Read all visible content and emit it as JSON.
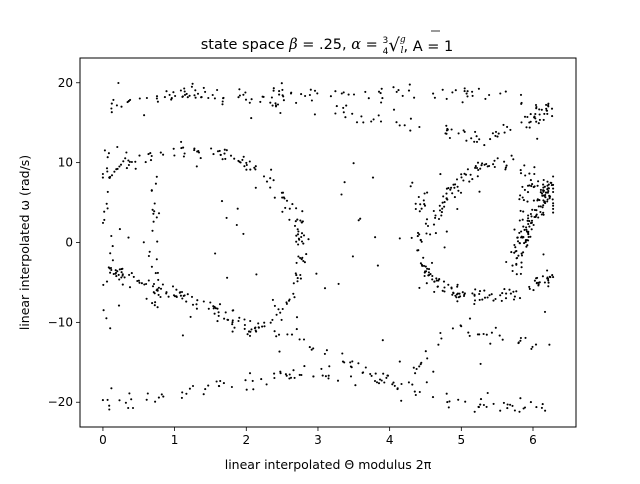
{
  "chart_data": {
    "type": "scatter",
    "title": {
      "prefix": "state space ",
      "beta_sym": "β",
      "beta_val": " = .25, ",
      "alpha_sym": "α",
      "frac_num": "3",
      "frac_den": "4",
      "sqrt_num": "g",
      "sqrt_den": "l",
      "a_text": ", A = 1"
    },
    "xlabel": "linear interpolated Θ modulus 2π",
    "ylabel": "linear interpolated ω (rad/s)",
    "xlim": [
      -0.32,
      6.6
    ],
    "ylim": [
      -23.1,
      23.1
    ],
    "xticks": [
      0,
      1,
      2,
      3,
      4,
      5,
      6
    ],
    "yticks": [
      -20,
      -10,
      0,
      10,
      20
    ],
    "grid": false,
    "legend": "none",
    "marker_color": "#000000",
    "point_count": 1100,
    "trajectories": [
      {
        "kind": "upper-band",
        "x": [
          0.0,
          0.2,
          0.5,
          0.8,
          1.2,
          1.6,
          2.0,
          2.6,
          3.2,
          3.8,
          4.4,
          5.0,
          5.6,
          6.0,
          6.28
        ],
        "y": [
          17.0,
          17.6,
          18.0,
          18.3,
          18.5,
          18.6,
          18.6,
          18.7,
          18.8,
          18.9,
          18.9,
          18.7,
          18.2,
          17.3,
          16.8
        ]
      },
      {
        "kind": "upper-descent",
        "x": [
          1.0,
          1.5,
          2.0,
          2.5,
          3.0,
          3.5,
          4.0,
          4.5,
          5.0,
          5.3,
          5.6,
          5.9,
          6.1,
          6.28
        ],
        "y": [
          19.0,
          18.6,
          18.0,
          17.4,
          16.6,
          15.8,
          15.0,
          14.4,
          13.4,
          12.6,
          14.0,
          15.0,
          15.8,
          16.3
        ]
      },
      {
        "kind": "lower-band",
        "x": [
          0.0,
          0.4,
          0.8,
          1.2,
          1.6,
          2.0,
          2.5,
          3.0,
          3.5,
          4.0,
          4.5,
          5.0,
          5.4,
          5.8,
          6.2
        ],
        "y": [
          -20.3,
          -19.8,
          -19.2,
          -18.6,
          -17.8,
          -17.2,
          -16.8,
          -16.4,
          -16.6,
          -17.4,
          -18.8,
          -20.0,
          -20.6,
          -20.5,
          -20.3
        ]
      },
      {
        "kind": "lower-ascent",
        "x": [
          0.0,
          0.4,
          0.8,
          1.2,
          1.6,
          2.0,
          2.3,
          2.6,
          3.0,
          3.4,
          3.8,
          4.2,
          4.6,
          5.0,
          5.4,
          5.8,
          6.2
        ],
        "y": [
          -3.0,
          -4.2,
          -5.5,
          -7.0,
          -8.5,
          -10.0,
          -11.0,
          -12.0,
          -13.4,
          -15.0,
          -16.6,
          -17.4,
          -13.5,
          -10.5,
          -12.0,
          -12.5,
          -13.0
        ]
      },
      {
        "kind": "left-loop-top",
        "x": [
          0.05,
          0.3,
          0.6,
          0.9,
          1.2,
          1.5,
          1.8,
          2.1,
          2.4,
          2.6,
          2.72,
          2.78
        ],
        "y": [
          8.0,
          9.5,
          10.6,
          11.2,
          11.5,
          11.3,
          10.6,
          9.2,
          7.0,
          4.5,
          2.0,
          0.0
        ]
      },
      {
        "kind": "left-loop-bottom",
        "x": [
          2.78,
          2.72,
          2.6,
          2.4,
          2.1,
          1.8,
          1.5,
          1.2,
          0.9,
          0.6,
          0.3,
          0.05
        ],
        "y": [
          -1.0,
          -4.0,
          -7.0,
          -9.5,
          -11.0,
          -9.8,
          -8.0,
          -6.8,
          -5.8,
          -5.0,
          -4.2,
          -3.5
        ]
      },
      {
        "kind": "right-loop-top",
        "x": [
          4.45,
          4.6,
          4.8,
          5.0,
          5.3,
          5.6,
          5.9,
          6.1,
          6.28
        ],
        "y": [
          0.0,
          2.8,
          5.6,
          8.0,
          9.6,
          9.8,
          8.4,
          6.5,
          4.2
        ]
      },
      {
        "kind": "right-loop-bottom",
        "x": [
          4.45,
          4.6,
          4.8,
          5.0,
          5.3,
          5.6,
          5.9,
          6.1,
          6.28
        ],
        "y": [
          -2.5,
          -4.6,
          -6.0,
          -6.6,
          -6.8,
          -6.7,
          -6.2,
          -5.0,
          -4.0
        ]
      },
      {
        "kind": "right-inner",
        "x": [
          5.75,
          5.85,
          6.0,
          6.15,
          6.28
        ],
        "y": [
          -2.0,
          0.0,
          3.0,
          6.0,
          8.0
        ]
      }
    ]
  }
}
